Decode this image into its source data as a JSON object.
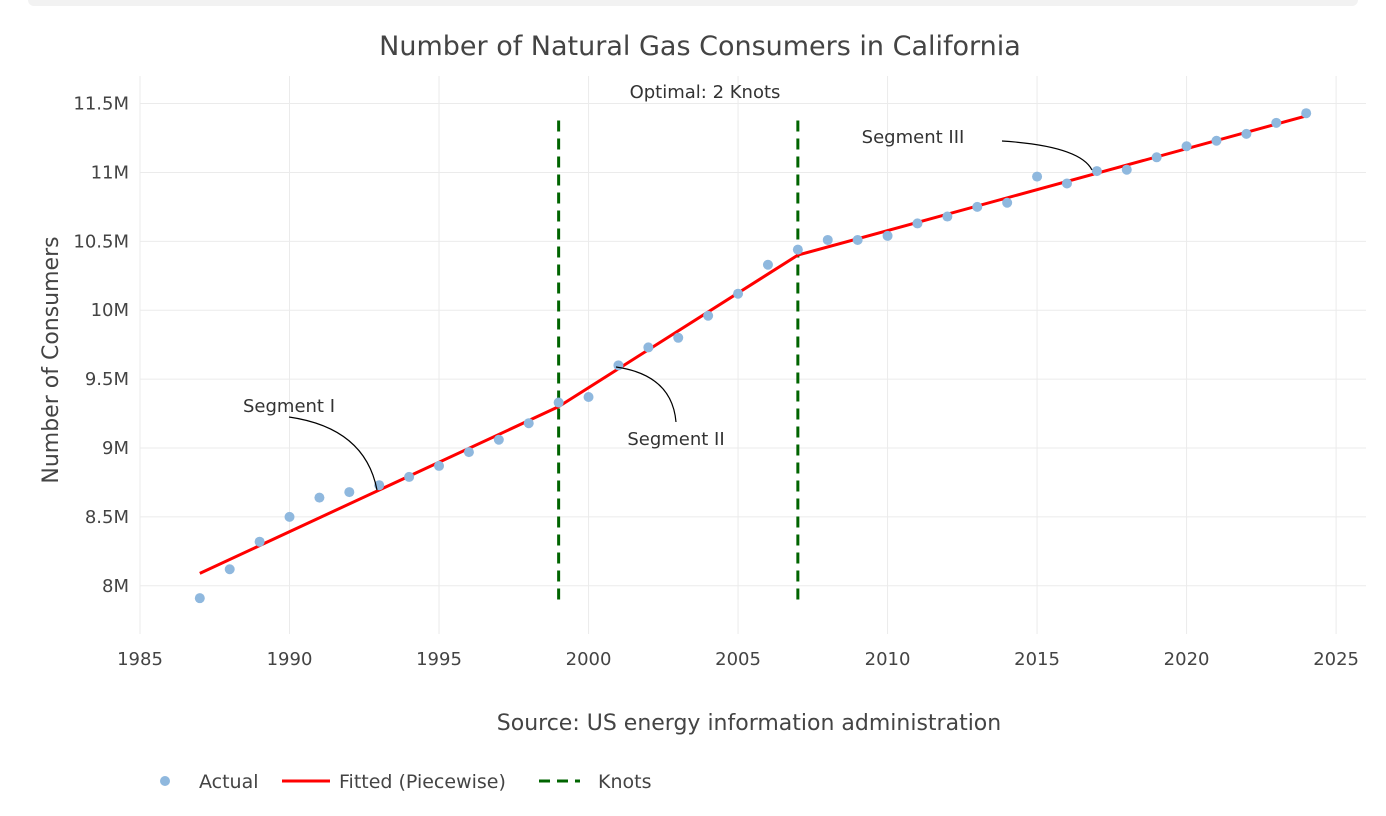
{
  "chart_data": {
    "type": "line",
    "title": "Number of Natural Gas Consumers in California",
    "xlabel": "Source: US energy information administration",
    "ylabel": "Number of Consumers",
    "xlim": [
      1985,
      2026
    ],
    "ylim": [
      7650000,
      11700000
    ],
    "x_ticks": [
      1985,
      1990,
      1995,
      2000,
      2005,
      2010,
      2015,
      2020,
      2025
    ],
    "x_tick_labels": [
      "1985",
      "1990",
      "1995",
      "2000",
      "2005",
      "2010",
      "2015",
      "2020",
      "2025"
    ],
    "y_ticks": [
      8000000,
      8500000,
      9000000,
      9500000,
      10000000,
      10500000,
      11000000,
      11500000
    ],
    "y_tick_labels": [
      "8M",
      "8.5M",
      "9M",
      "9.5M",
      "10M",
      "10.5M",
      "11M",
      "11.5M"
    ],
    "grid": true,
    "series": [
      {
        "name": "Actual",
        "mode": "markers",
        "color": "#8fb8de",
        "x": [
          1987,
          1988,
          1989,
          1990,
          1991,
          1992,
          1993,
          1994,
          1995,
          1996,
          1997,
          1998,
          1999,
          2000,
          2001,
          2002,
          2003,
          2004,
          2005,
          2006,
          2007,
          2008,
          2009,
          2010,
          2011,
          2012,
          2013,
          2014,
          2015,
          2016,
          2017,
          2018,
          2019,
          2020,
          2021,
          2022,
          2023,
          2024
        ],
        "y": [
          7910000,
          8120000,
          8320000,
          8500000,
          8640000,
          8680000,
          8730000,
          8790000,
          8870000,
          8970000,
          9060000,
          9180000,
          9330000,
          9370000,
          9600000,
          9730000,
          9800000,
          9960000,
          10120000,
          10330000,
          10440000,
          10510000,
          10510000,
          10540000,
          10630000,
          10680000,
          10750000,
          10780000,
          10970000,
          10920000,
          11010000,
          11020000,
          11110000,
          11190000,
          11230000,
          11280000,
          11360000,
          11430000
        ]
      },
      {
        "name": "Fitted (Piecewise)",
        "mode": "lines",
        "color": "#ff0000",
        "x": [
          1987,
          1999,
          2007,
          2024
        ],
        "y": [
          8090000,
          9300000,
          10400000,
          11410000
        ]
      },
      {
        "name": "Knots",
        "mode": "dashed-vertical-lines",
        "color": "#006400",
        "x": [
          1999,
          2007
        ],
        "y_range": [
          7900000,
          11420000
        ]
      }
    ],
    "annotations": [
      {
        "text": "Optimal: 2 Knots",
        "x": 2003,
        "y": 11560000,
        "arrow": false
      },
      {
        "text": "Segment I",
        "x": 1993,
        "y": 8700000,
        "arrow": true
      },
      {
        "text": "Segment II",
        "x": 2001,
        "y": 9610000,
        "arrow": true
      },
      {
        "text": "Segment III",
        "x": 2017,
        "y": 11000000,
        "arrow": true
      }
    ],
    "legend": {
      "placement": "bottom-left",
      "entries": [
        "Actual",
        "Fitted (Piecewise)",
        "Knots"
      ]
    }
  }
}
